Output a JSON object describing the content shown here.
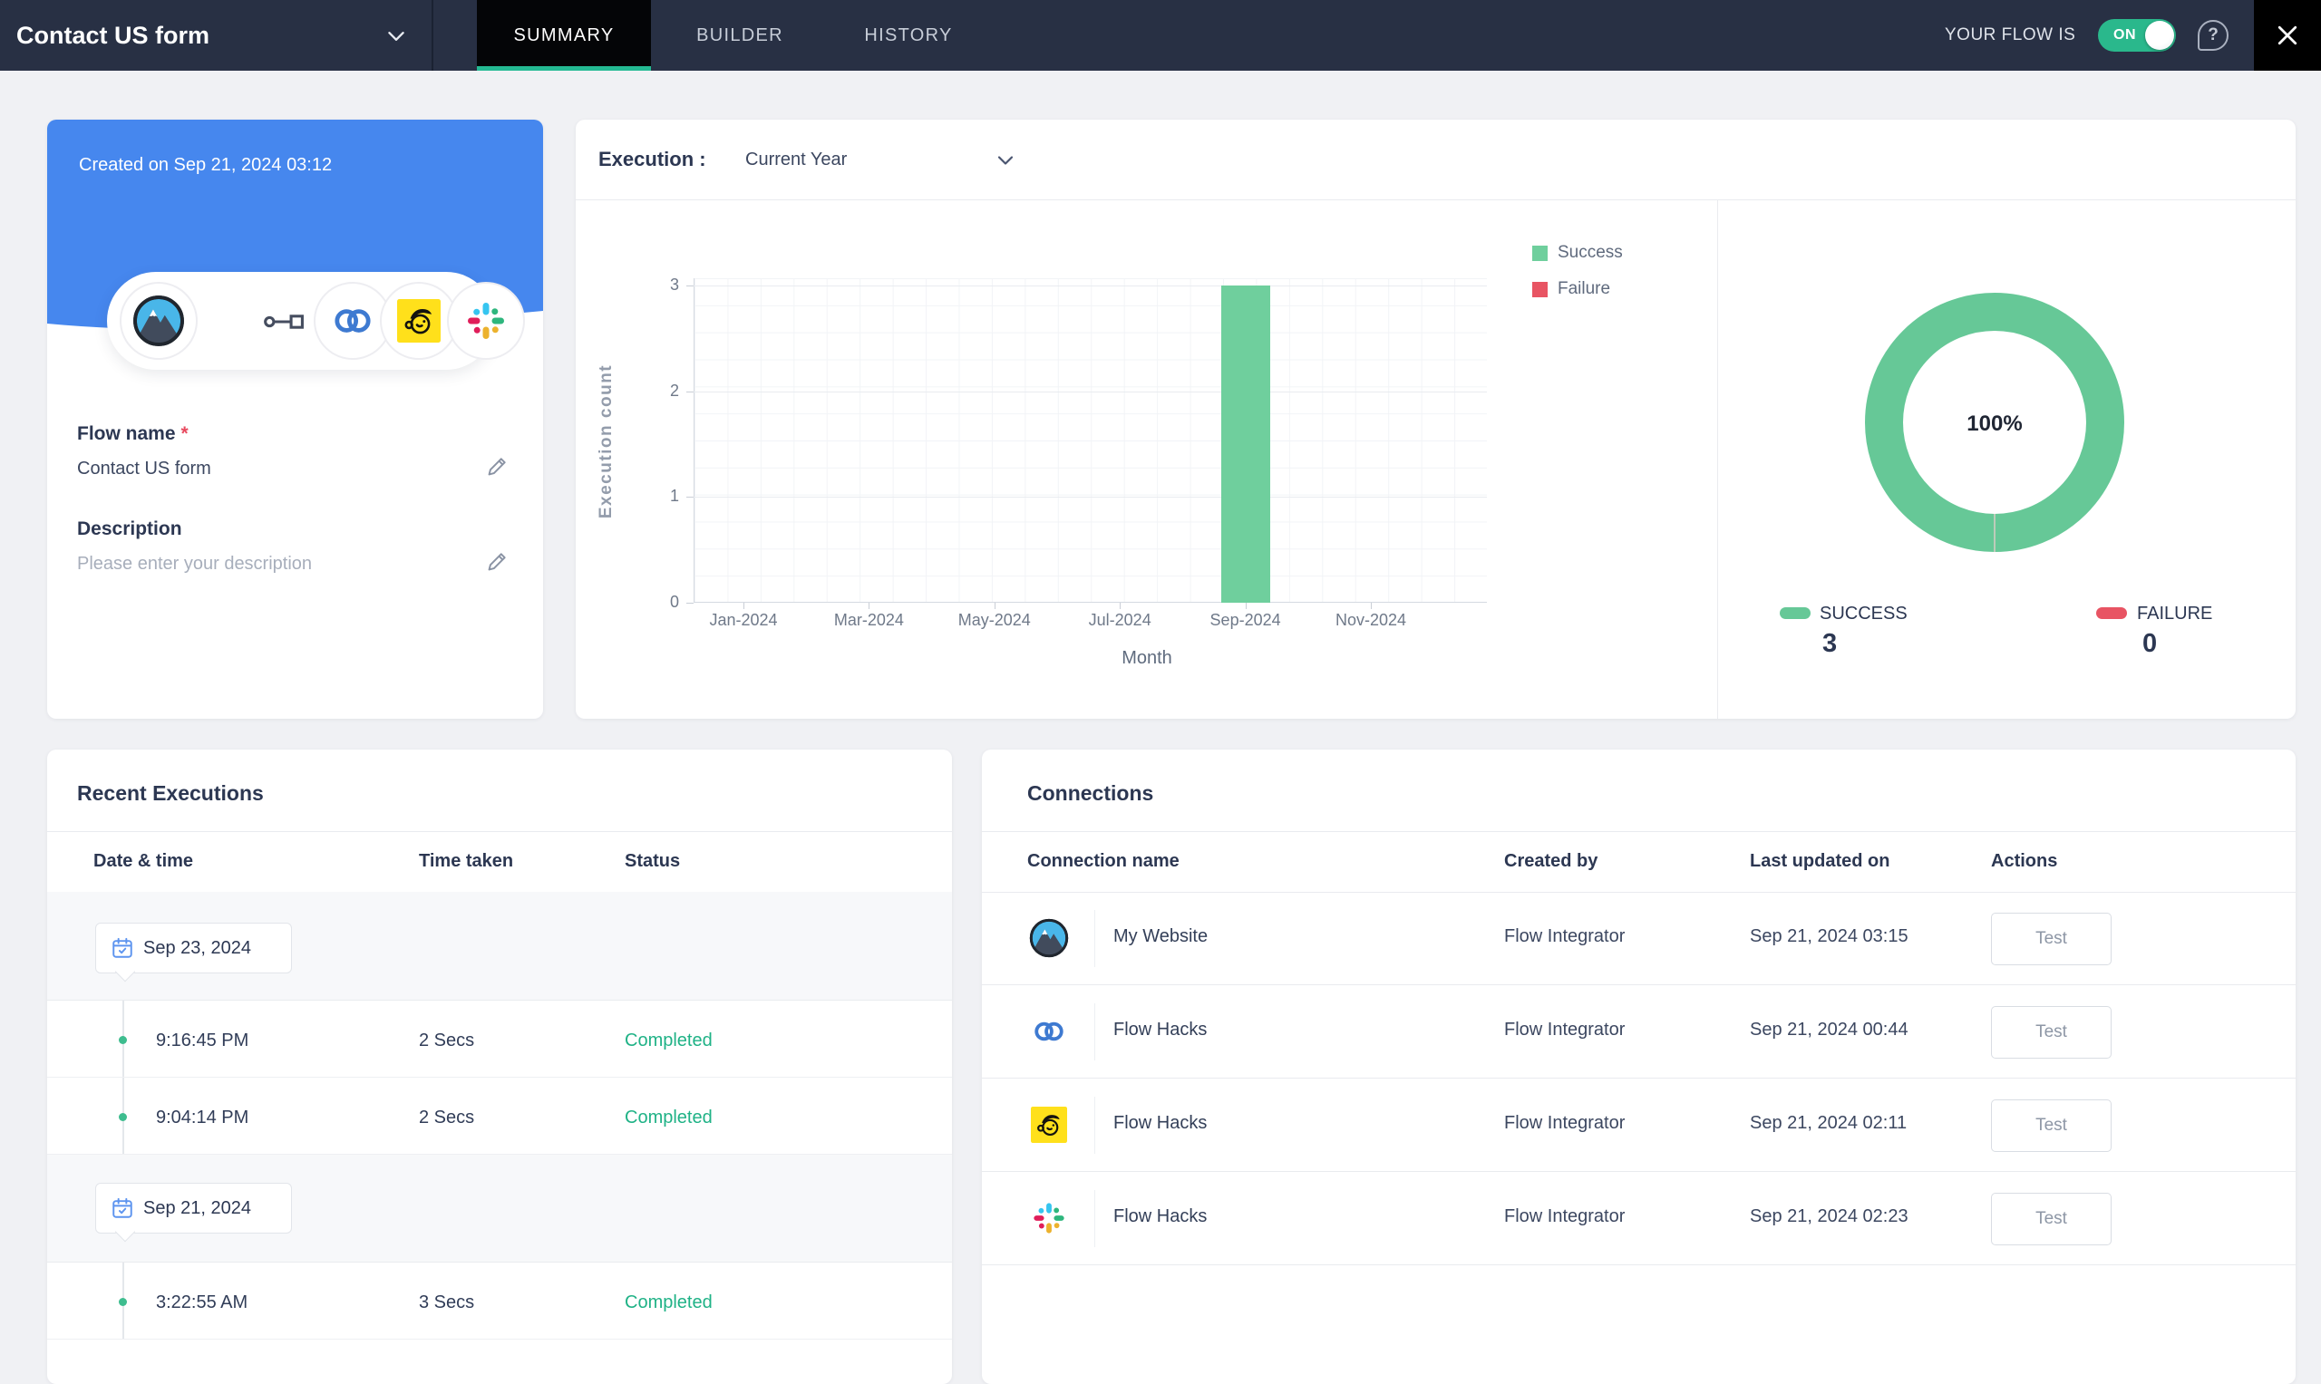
{
  "navbar": {
    "flow_title": "Contact US form",
    "tabs": [
      {
        "label": "SUMMARY",
        "active": true
      },
      {
        "label": "BUILDER",
        "active": false
      },
      {
        "label": "HISTORY",
        "active": false
      }
    ],
    "flow_state_label": "YOUR FLOW IS",
    "toggle_state": "ON",
    "help_glyph": "?",
    "close_glyph": "✕",
    "accent_teal": "#24ba93",
    "toggle_green": "#2ab88c"
  },
  "flow_card": {
    "created_on": "Created on Sep 21, 2024 03:12",
    "header_blue": "#4687ee",
    "apps": [
      "my-website",
      "connector",
      "zoho-flow",
      "mailchimp",
      "slack"
    ],
    "flow_name_label": "Flow name",
    "required_marker": "*",
    "flow_name_value": "Contact US form",
    "description_label": "Description",
    "description_placeholder": "Please enter your description"
  },
  "execution_panel": {
    "title": "Execution :",
    "range_selected": "Current Year",
    "legend": [
      {
        "label": "Success",
        "color": "#6fcf9d"
      },
      {
        "label": "Failure",
        "color": "#e85463"
      }
    ],
    "summary": {
      "center_percent": "100%",
      "success_label": "SUCCESS",
      "success_count": "3",
      "failure_label": "FAILURE",
      "failure_count": "0"
    }
  },
  "chart_data": [
    {
      "type": "bar",
      "title": "Execution count by month",
      "x": [
        "Jan-2024",
        "Feb-2024",
        "Mar-2024",
        "Apr-2024",
        "May-2024",
        "Jun-2024",
        "Jul-2024",
        "Aug-2024",
        "Sep-2024",
        "Oct-2024",
        "Nov-2024",
        "Dec-2024"
      ],
      "series": [
        {
          "name": "Success",
          "color": "#6fcf9d",
          "values": [
            0,
            0,
            0,
            0,
            0,
            0,
            0,
            0,
            3,
            0,
            0,
            0
          ]
        },
        {
          "name": "Failure",
          "color": "#e85463",
          "values": [
            0,
            0,
            0,
            0,
            0,
            0,
            0,
            0,
            0,
            0,
            0,
            0
          ]
        }
      ],
      "xlabel": "Month",
      "ylabel": "Execution count",
      "ylim": [
        0,
        3
      ],
      "yticks": [
        0,
        1,
        2,
        3
      ],
      "xtick_labels": [
        "Jan-2024",
        "Mar-2024",
        "May-2024",
        "Jul-2024",
        "Sep-2024",
        "Nov-2024"
      ],
      "xtick_month_indices": [
        0,
        2,
        4,
        6,
        8,
        10
      ],
      "grid": true,
      "legend_position": "right-top"
    },
    {
      "type": "pie",
      "labels": [
        "Success",
        "Failure"
      ],
      "values": [
        3,
        0
      ],
      "percents": [
        "100%",
        "0%"
      ],
      "colors": [
        "#66c897",
        "#e85463"
      ],
      "center_label": "100%"
    }
  ],
  "recent_executions": {
    "title": "Recent Executions",
    "columns": [
      "Date & time",
      "Time taken",
      "Status"
    ],
    "groups": [
      {
        "date": "Sep 23, 2024",
        "rows": [
          {
            "time": "9:16:45 PM",
            "taken": "2 Secs",
            "status": "Completed"
          },
          {
            "time": "9:04:14 PM",
            "taken": "2 Secs",
            "status": "Completed"
          }
        ]
      },
      {
        "date": "Sep 21, 2024",
        "rows": [
          {
            "time": "3:22:55 AM",
            "taken": "3 Secs",
            "status": "Completed"
          }
        ]
      }
    ],
    "status_color": "#1fb286"
  },
  "connections": {
    "title": "Connections",
    "columns": [
      "Connection name",
      "Created by",
      "Last updated on",
      "Actions"
    ],
    "rows": [
      {
        "icon": "my-website",
        "name": "My Website",
        "created_by": "Flow Integrator",
        "last_updated": "Sep 21, 2024 03:15",
        "action": "Test"
      },
      {
        "icon": "zoho-flow",
        "name": "Flow Hacks",
        "created_by": "Flow Integrator",
        "last_updated": "Sep 21, 2024 00:44",
        "action": "Test"
      },
      {
        "icon": "mailchimp",
        "name": "Flow Hacks",
        "created_by": "Flow Integrator",
        "last_updated": "Sep 21, 2024 02:11",
        "action": "Test"
      },
      {
        "icon": "slack",
        "name": "Flow Hacks",
        "created_by": "Flow Integrator",
        "last_updated": "Sep 21, 2024 02:23",
        "action": "Test"
      }
    ]
  }
}
